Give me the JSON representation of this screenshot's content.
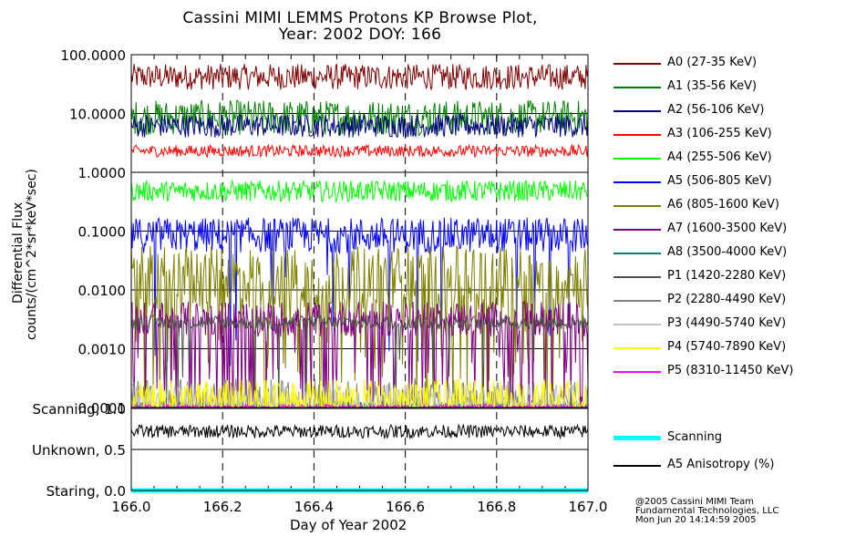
{
  "title_line1": "Cassini MIMI LEMMS Protons KP Browse Plot,",
  "title_line2": "Year: 2002 DOY: 166",
  "credit": [
    "@2005 Cassini MIMI Team",
    "Fundamental Technologies, LLC",
    "Mon Jun 20 14:14:59 2005"
  ],
  "legend2": [
    {
      "label": "Scanning",
      "color": "#00ffff"
    },
    {
      "label": "A5 Anisotropy (%)",
      "color": "#000000"
    }
  ],
  "chart_data": [
    {
      "type": "line",
      "xlabel": "Day of Year 2002",
      "ylabel_line1": "Differential Flux",
      "ylabel_line2": "counts/(cm^2*sr*keV*sec)",
      "xlim": [
        166.0,
        167.0
      ],
      "ylim": [
        0.0001,
        100
      ],
      "log_scale_y": true,
      "x_ticks": [
        "166.0",
        "166.2",
        "166.4",
        "166.6",
        "166.8",
        "167.0"
      ],
      "y_ticks": [
        {
          "value": 100,
          "label": "100.0000"
        },
        {
          "value": 10,
          "label": "10.0000"
        },
        {
          "value": 1,
          "label": "1.0000"
        },
        {
          "value": 0.1,
          "label": "0.1000"
        },
        {
          "value": 0.01,
          "label": "0.0100"
        },
        {
          "value": 0.001,
          "label": "0.0010"
        },
        {
          "value": 0.0001,
          "label": "0.0001"
        }
      ],
      "grid": true,
      "legend_position": "right",
      "series": [
        {
          "name": "A0 (27-35 KeV)",
          "color": "#800000",
          "base": 42,
          "var": 0.22,
          "dips": 0
        },
        {
          "name": "A1 (35-56 KeV)",
          "color": "#008000",
          "base": 8.5,
          "var": 0.3,
          "dips": 0
        },
        {
          "name": "A2 (56-106 KeV)",
          "color": "#000080",
          "base": 6.2,
          "var": 0.2,
          "dips": 0
        },
        {
          "name": "A3 (106-255 KeV)",
          "color": "#ff0000",
          "base": 2.3,
          "var": 0.1,
          "dips": 0
        },
        {
          "name": "A4 (255-506 KeV)",
          "color": "#00ff00",
          "base": 0.48,
          "var": 0.18,
          "dips": 0
        },
        {
          "name": "A5 (506-805 KeV)",
          "color": "#0000ff",
          "base": 0.085,
          "var": 0.3,
          "dips": 0.05
        },
        {
          "name": "A6 (805-1600 KeV)",
          "color": "#808000",
          "base": 0.016,
          "var": 0.55,
          "dips": 0.22
        },
        {
          "name": "A7 (1600-3500 KeV)",
          "color": "#800080",
          "base": 0.0032,
          "var": 0.3,
          "dips": 0.18
        },
        {
          "name": "A8 (3500-4000 KeV)",
          "color": "#008080",
          "base": 0.0001,
          "var": 0.1,
          "dips": 0
        },
        {
          "name": "P1 (1420-2280 KeV)",
          "color": "#505050",
          "base": 0.0028,
          "var": 0.12,
          "dips": 0.02
        },
        {
          "name": "P2 (2280-4490 KeV)",
          "color": "#808080",
          "base": 0.0001,
          "var": 0.5,
          "dips": 0
        },
        {
          "name": "P3 (4490-5740 KeV)",
          "color": "#c0c0c0",
          "base": 0.0001,
          "var": 0.4,
          "dips": 0
        },
        {
          "name": "P4 (5740-7890 KeV)",
          "color": "#ffff00",
          "base": 0.00012,
          "var": 0.4,
          "dips": 0
        },
        {
          "name": "P5 (8310-11450 KeV)",
          "color": "#ff00ff",
          "base": 0.0001,
          "var": 0.05,
          "dips": 0
        }
      ]
    },
    {
      "type": "line",
      "xlim": [
        166.0,
        167.0
      ],
      "ylim": [
        0.0,
        1.0
      ],
      "y_ticks": [
        {
          "value": 1.0,
          "label": "Scanning, 1.0"
        },
        {
          "value": 0.5,
          "label": "Unknown, 0.5"
        },
        {
          "value": 0.0,
          "label": "Staring, 0.0"
        }
      ],
      "grid": true,
      "series": [
        {
          "name": "Scanning",
          "color": "#00ffff",
          "constant": 0.0
        },
        {
          "name": "A5 Anisotropy (%)",
          "color": "#000000",
          "base": 0.72,
          "var": 0.08
        }
      ]
    }
  ]
}
